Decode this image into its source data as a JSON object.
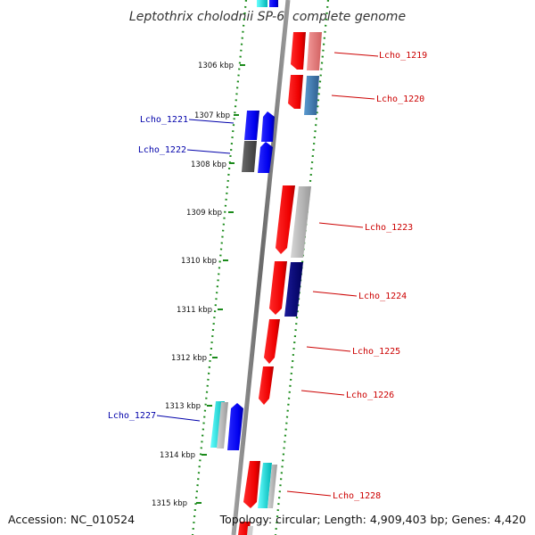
{
  "title": "Leptothrix cholodnii SP-6, complete genome",
  "accession": "Accession: NC_010524",
  "summary": "Topology: circular; Length: 4,909,403 bp; Genes: 4,420",
  "colors": {
    "gene_red": "#ff0000",
    "gene_blue": "#0000ff",
    "label_red": "#cc0000",
    "label_blue": "#0000aa",
    "pink": "#f08080",
    "steel": "#4682b4",
    "navy": "#00007a",
    "cyan": "#00e5e5",
    "gray": "#bbbbbb",
    "darkgray": "#555555",
    "ruler_green": "#1a8a1a",
    "backbone": "#777777"
  },
  "ticks": [
    {
      "label": "1306 kbp"
    },
    {
      "label": "1307 kbp"
    },
    {
      "label": "1308 kbp"
    },
    {
      "label": "1309 kbp"
    },
    {
      "label": "1310 kbp"
    },
    {
      "label": "1311 kbp"
    },
    {
      "label": "1312 kbp"
    },
    {
      "label": "1313 kbp"
    },
    {
      "label": "1314 kbp"
    },
    {
      "label": "1315 kbp"
    }
  ],
  "gene_labels": [
    {
      "name": "Lcho_1219",
      "strand": "plus"
    },
    {
      "name": "Lcho_1220",
      "strand": "plus"
    },
    {
      "name": "Lcho_1221",
      "strand": "minus"
    },
    {
      "name": "Lcho_1222",
      "strand": "minus"
    },
    {
      "name": "Lcho_1223",
      "strand": "plus"
    },
    {
      "name": "Lcho_1224",
      "strand": "plus"
    },
    {
      "name": "Lcho_1225",
      "strand": "plus"
    },
    {
      "name": "Lcho_1226",
      "strand": "plus"
    },
    {
      "name": "Lcho_1227",
      "strand": "minus"
    },
    {
      "name": "Lcho_1228",
      "strand": "plus"
    }
  ]
}
